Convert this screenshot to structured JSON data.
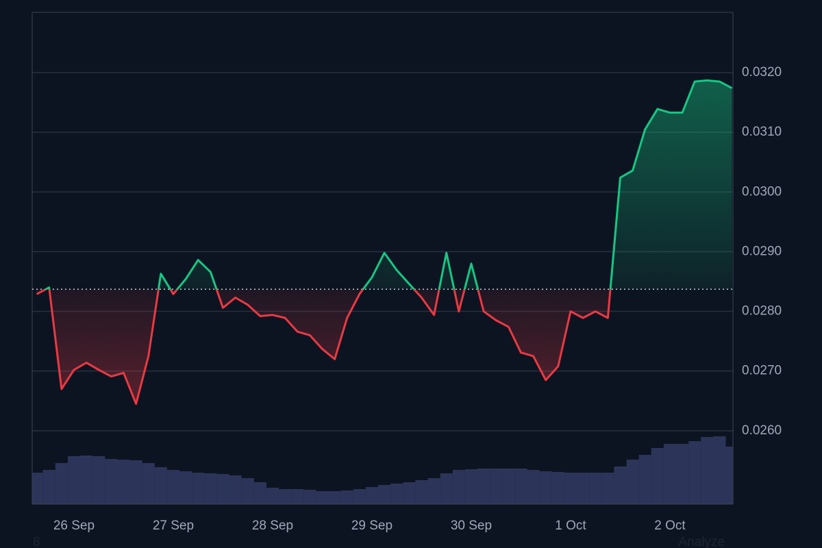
{
  "chart_data": {
    "type": "line",
    "categories": [
      null,
      null,
      null,
      "26 Sep",
      null,
      null,
      null,
      null,
      null,
      null,
      null,
      "27 Sep",
      null,
      null,
      null,
      null,
      null,
      null,
      null,
      "28 Sep",
      null,
      null,
      null,
      null,
      null,
      null,
      null,
      "29 Sep",
      null,
      null,
      null,
      null,
      null,
      null,
      null,
      "30 Sep",
      null,
      null,
      null,
      null,
      null,
      null,
      null,
      "1 Oct",
      null,
      null,
      null,
      null,
      null,
      null,
      null,
      "2 Oct",
      null,
      null,
      null,
      null,
      null
    ],
    "values": [
      0.02829,
      0.0284,
      0.0267,
      0.02702,
      0.02714,
      0.02702,
      0.02691,
      0.02697,
      0.02645,
      0.02725,
      0.02863,
      0.02829,
      0.02854,
      0.02886,
      0.02866,
      0.02806,
      0.02823,
      0.02811,
      0.02792,
      0.02794,
      0.02789,
      0.02766,
      0.0276,
      0.02737,
      0.0272,
      0.02789,
      0.02829,
      0.02857,
      0.02898,
      0.02869,
      0.02846,
      0.02823,
      0.02794,
      0.02898,
      0.028,
      0.0288,
      0.028,
      0.02785,
      0.02774,
      0.02731,
      0.02725,
      0.02685,
      0.02708,
      0.028,
      0.02789,
      0.028,
      0.02789,
      0.03024,
      0.03036,
      0.03105,
      0.03139,
      0.03133,
      0.03133,
      0.03185,
      0.03187,
      0.03185,
      0.03174
    ],
    "volume": [
      46,
      50,
      60,
      70,
      71,
      70,
      66,
      65,
      64,
      60,
      54,
      50,
      48,
      46,
      45,
      44,
      42,
      38,
      32,
      24,
      22,
      22,
      21,
      19,
      19,
      20,
      22,
      25,
      28,
      30,
      32,
      35,
      38,
      45,
      50,
      51,
      52,
      52,
      52,
      52,
      50,
      48,
      47,
      46,
      46,
      46,
      46,
      55,
      65,
      72,
      82,
      88,
      88,
      92,
      98,
      99,
      84
    ],
    "baseline": 0.02837,
    "up_color": "#16c784",
    "down_color": "#ea3943",
    "volume_color": "#2c3559",
    "ylim": [
      0.02477,
      0.03301
    ],
    "yticks": [
      {
        "value": 0.026,
        "label": "0.0260"
      },
      {
        "value": 0.027,
        "label": "0.0270"
      },
      {
        "value": 0.028,
        "label": "0.0280"
      },
      {
        "value": 0.029,
        "label": "0.0290"
      },
      {
        "value": 0.03,
        "label": "0.0300"
      },
      {
        "value": 0.031,
        "label": "0.0310"
      },
      {
        "value": 0.032,
        "label": "0.0320"
      }
    ],
    "grid": true,
    "footer_left": "8",
    "footer_right": "Analyze"
  }
}
